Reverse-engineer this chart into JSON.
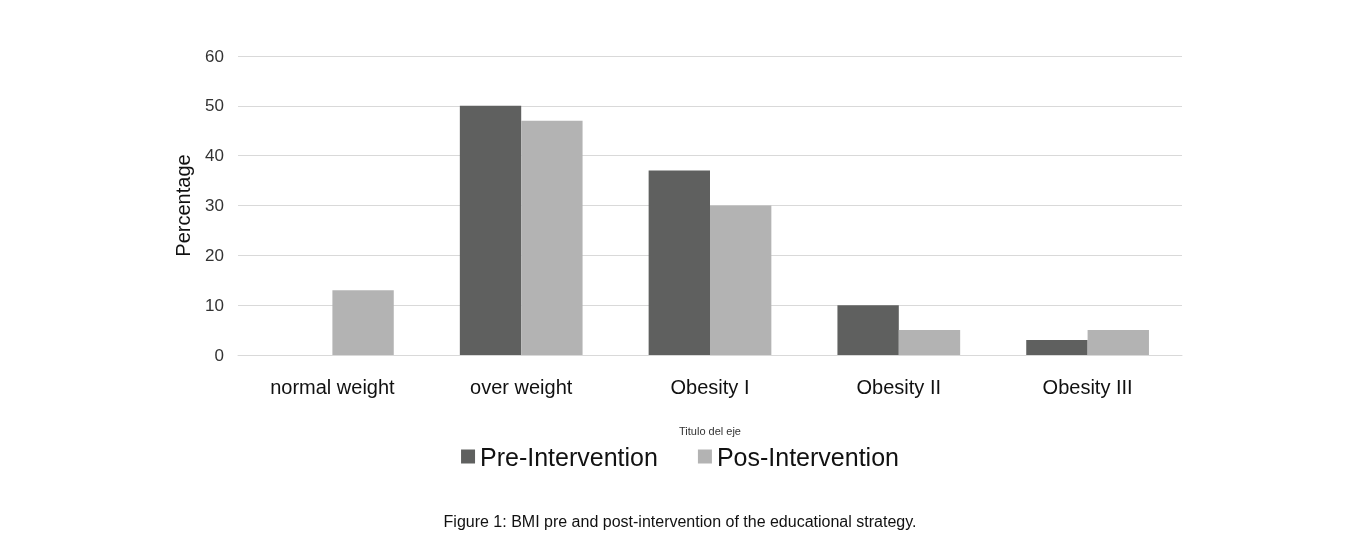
{
  "chart_data": {
    "type": "bar",
    "xlabel": "Titulo del eje",
    "ylabel": "Percentage",
    "categories": [
      "normal weight",
      "over weight",
      "Obesity I",
      "Obesity II",
      "Obesity III"
    ],
    "series": [
      {
        "name": "Pre-Intervention",
        "color": "#5f605f",
        "values": [
          0,
          50,
          37,
          10,
          3
        ]
      },
      {
        "name": "Pos-Intervention",
        "color": "#b3b3b3",
        "values": [
          13,
          47,
          30,
          5,
          5
        ]
      }
    ],
    "ylim": [
      0,
      60
    ],
    "yticks": [
      0,
      10,
      20,
      30,
      40,
      50,
      60
    ],
    "grid": "y",
    "legend": "bottom",
    "annotations": [
      "Figure 1: BMI pre and post-intervention of the educational strategy."
    ]
  }
}
